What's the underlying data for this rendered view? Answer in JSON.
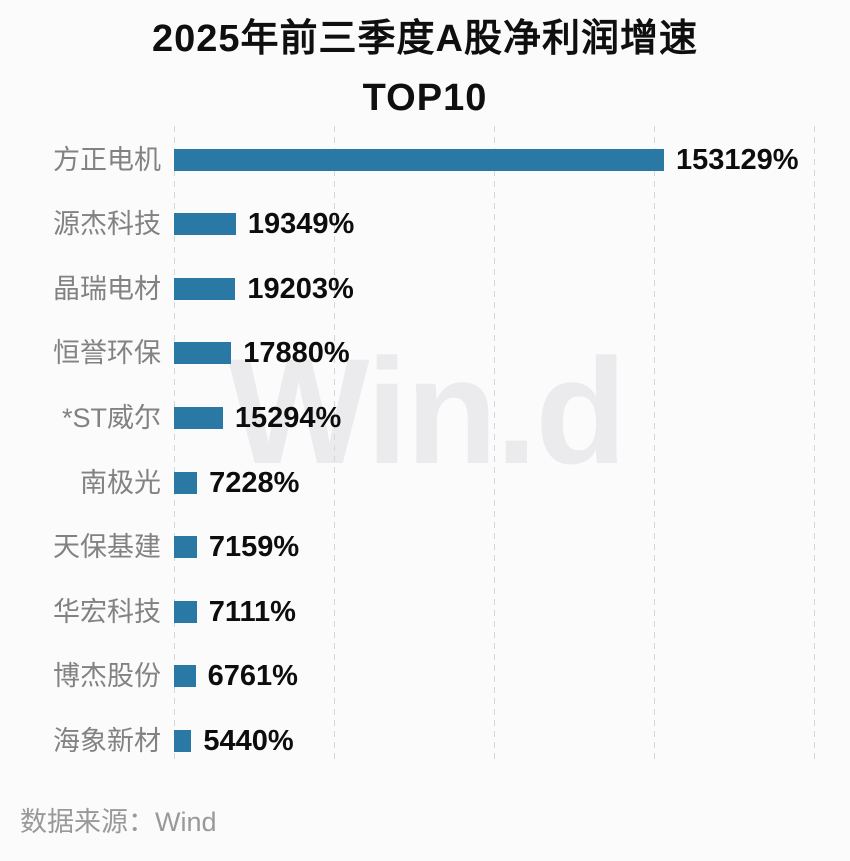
{
  "title": {
    "line1": "2025年前三季度A股净利润增速",
    "line2": "TOP10"
  },
  "watermark": "Win.d",
  "footer": {
    "text": "数据来源：Wind"
  },
  "colors": {
    "background": "#fbfbfb",
    "title": "#0f0f0f",
    "bar": "#2a79a5",
    "label": "#828282",
    "value": "#0d0d0d",
    "gridline": "#d6d6d8",
    "watermark": "#ebebed",
    "footer": "#999999"
  },
  "chart_data": {
    "type": "bar",
    "orientation": "horizontal",
    "title": "2025年前三季度A股净利润增速 TOP10",
    "categories": [
      "方正电机",
      "源杰科技",
      "晶瑞电材",
      "恒誉环保",
      "*ST威尔",
      "南极光",
      "天保基建",
      "华宏科技",
      "博杰股份",
      "海象新材"
    ],
    "values": [
      153129,
      19349,
      19203,
      17880,
      15294,
      7228,
      7159,
      7111,
      6761,
      5440
    ],
    "value_labels": [
      "153129%",
      "19349%",
      "19203%",
      "17880%",
      "15294%",
      "7228%",
      "7159%",
      "7111%",
      "6761%",
      "5440%"
    ],
    "unit": "%",
    "xlabel": "",
    "ylabel": "",
    "xlim": [
      0,
      200000
    ],
    "grid_step": 50000,
    "grid": true,
    "legend": false,
    "source": "Wind"
  }
}
